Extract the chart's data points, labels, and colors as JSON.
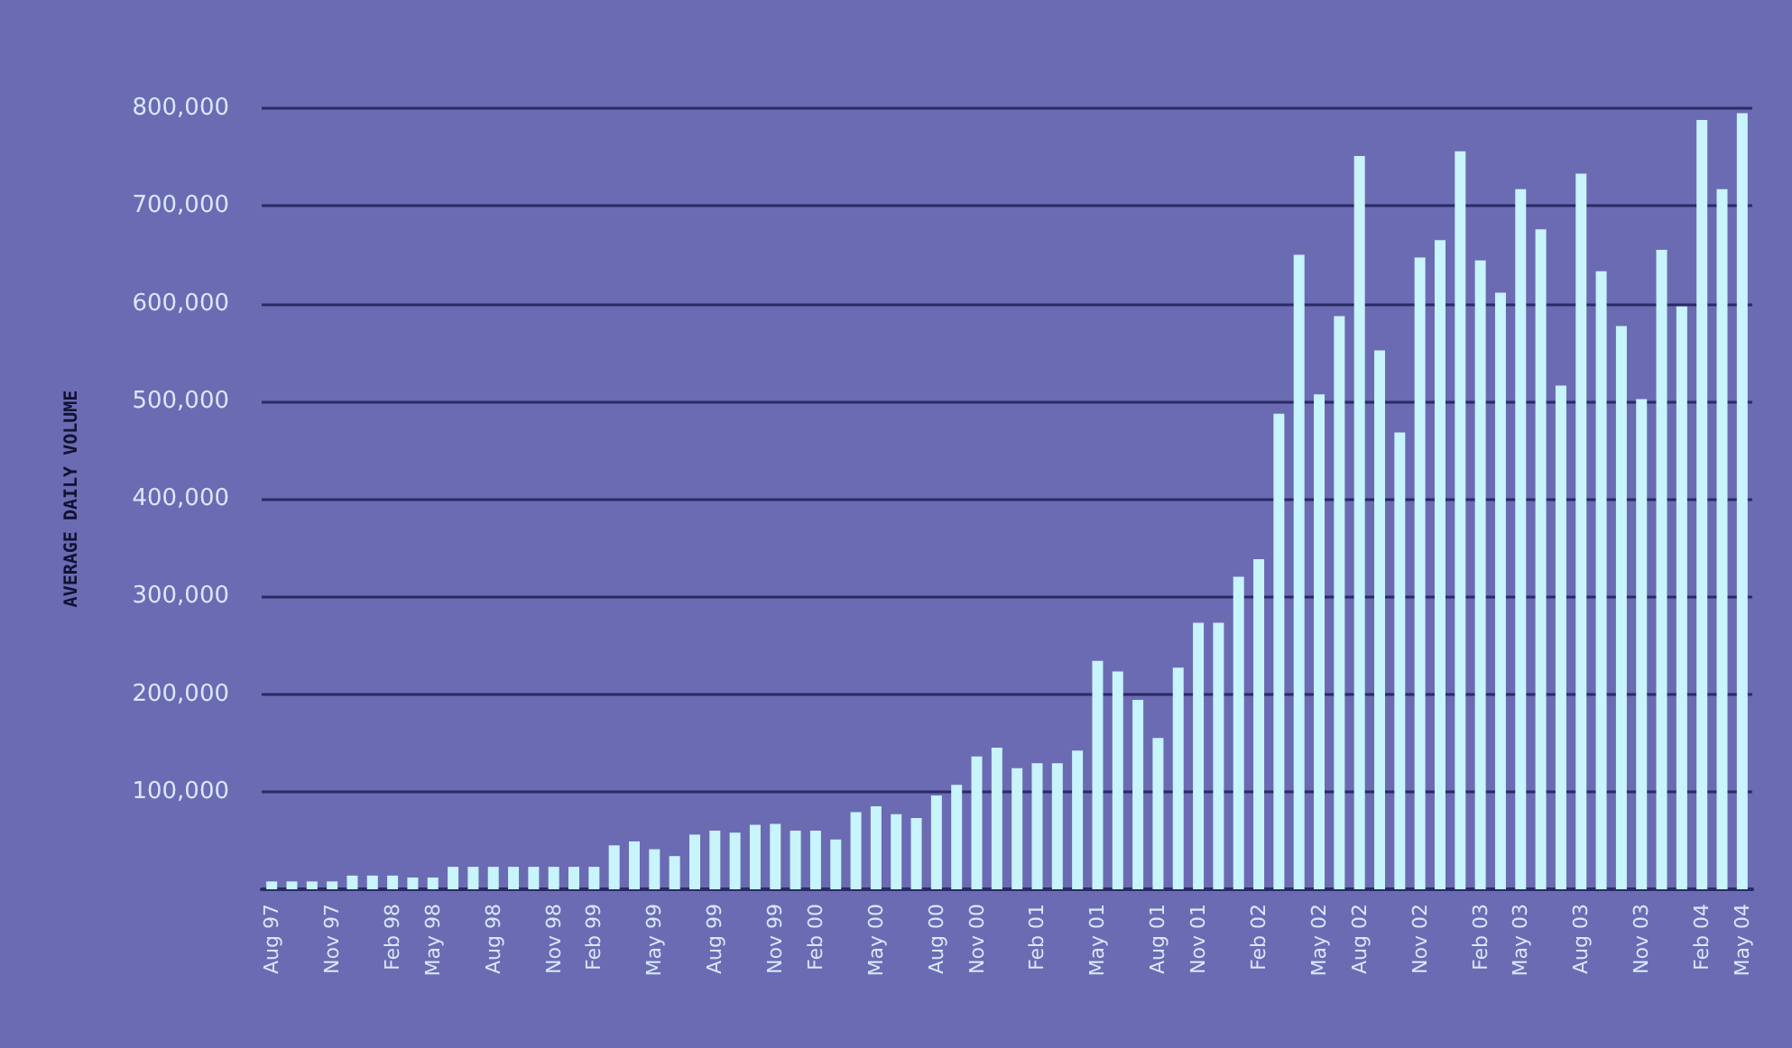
{
  "chart_data": {
    "type": "bar",
    "ylabel": "AVERAGE DAILY VOLUME",
    "categories": [
      "Aug 97",
      null,
      null,
      "Nov 97",
      null,
      null,
      "Feb 98",
      null,
      "May 98",
      null,
      null,
      "Aug 98",
      null,
      null,
      "Nov 98",
      null,
      "Feb 99",
      null,
      null,
      "May 99",
      null,
      null,
      "Aug 99",
      null,
      null,
      "Nov 99",
      null,
      "Feb 00",
      null,
      null,
      "May 00",
      null,
      null,
      "Aug 00",
      null,
      "Nov 00",
      null,
      null,
      "Feb 01",
      null,
      null,
      "May 01",
      null,
      null,
      "Aug 01",
      null,
      "Nov 01",
      null,
      null,
      "Feb 02",
      null,
      null,
      "May 02",
      null,
      "Aug 02",
      null,
      null,
      "Nov 02",
      null,
      null,
      "Feb 03",
      null,
      "May 03",
      null,
      null,
      "Aug 03",
      null,
      null,
      "Nov 03",
      null,
      null,
      "Feb 04",
      null,
      "May 04"
    ],
    "values": [
      8000,
      8000,
      8000,
      8000,
      14000,
      14000,
      14000,
      12000,
      12000,
      23000,
      23000,
      23000,
      23000,
      23000,
      23000,
      23000,
      23000,
      45000,
      49000,
      41000,
      34000,
      56000,
      60000,
      58000,
      66000,
      67000,
      60000,
      60000,
      51000,
      79000,
      85000,
      77000,
      73000,
      96000,
      107000,
      136000,
      145000,
      124000,
      129000,
      129000,
      142000,
      234000,
      223000,
      194000,
      155000,
      227000,
      273000,
      273000,
      320000,
      338000,
      487000,
      650000,
      507000,
      587000,
      751000,
      552000,
      468000,
      647000,
      665000,
      756000,
      644000,
      611000,
      717000,
      676000,
      516000,
      733000,
      633000,
      577000,
      502000,
      655000,
      597000,
      788000,
      717000,
      795000
    ],
    "color": "#c8f4fb",
    "ylim": [
      0,
      800000
    ],
    "yticks": [
      {
        "value": 100000,
        "label": "100,000"
      },
      {
        "value": 200000,
        "label": "200,000"
      },
      {
        "value": 300000,
        "label": "300,000"
      },
      {
        "value": 400000,
        "label": "400,000"
      },
      {
        "value": 500000,
        "label": "500,000"
      },
      {
        "value": 600000,
        "label": "600,000"
      },
      {
        "value": 700000,
        "label": "700,000"
      },
      {
        "value": 800000,
        "label": "800,000"
      }
    ],
    "grid": "y"
  }
}
